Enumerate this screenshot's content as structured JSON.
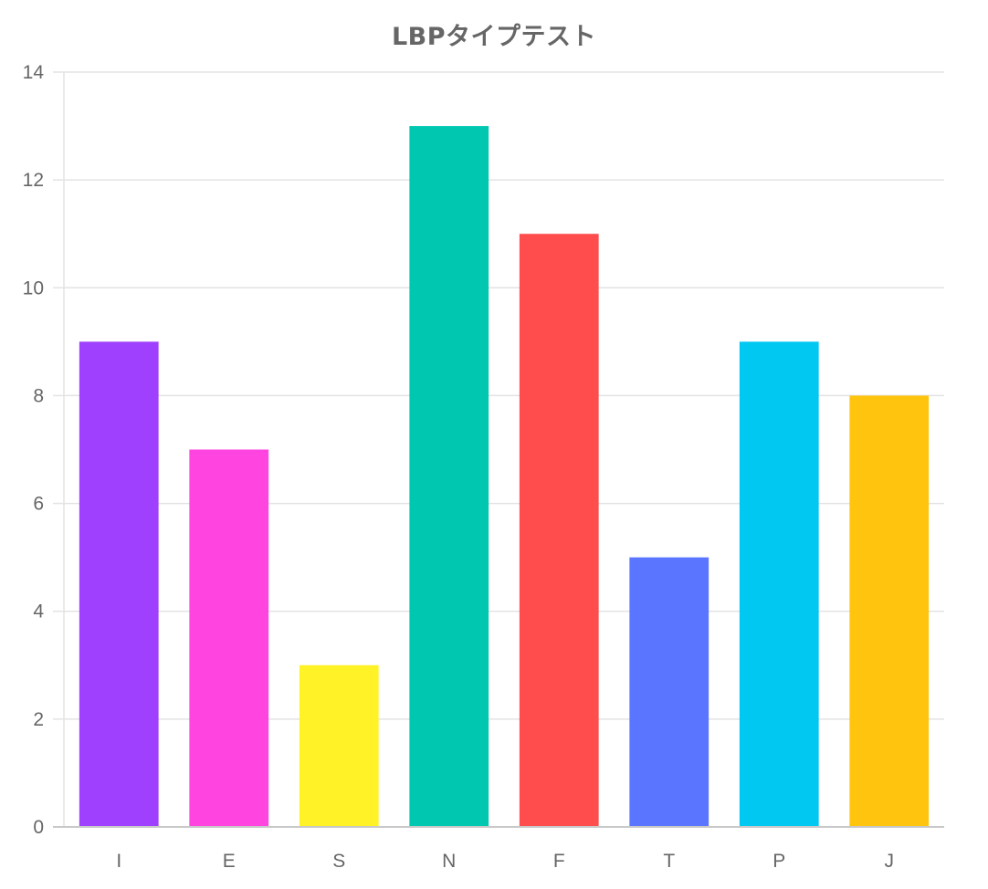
{
  "chart_data": {
    "type": "bar",
    "title": "LBPタイプテスト",
    "xlabel": "",
    "ylabel": "",
    "categories": [
      "I",
      "E",
      "S",
      "N",
      "F",
      "T",
      "P",
      "J"
    ],
    "values": [
      9,
      7,
      3,
      13,
      11,
      5,
      9,
      8
    ],
    "colors": [
      "#a040ff",
      "#ff44e0",
      "#fff226",
      "#00c8b0",
      "#ff4c4c",
      "#5a75ff",
      "#00c8f0",
      "#ffc40e"
    ],
    "ylim": [
      0,
      14
    ],
    "yticks": [
      0,
      2,
      4,
      6,
      8,
      10,
      12,
      14
    ],
    "grid": true,
    "legend": "none",
    "gridline_color": "#e3e3e3",
    "axis_color": "#c9c9c9",
    "text_color": "#666666"
  }
}
